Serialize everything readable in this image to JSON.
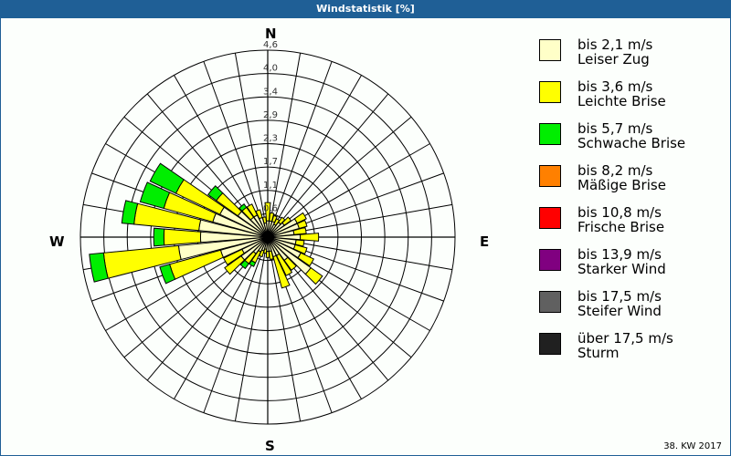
{
  "title": "Windstatistik [%]",
  "footer": "38. KW 2017",
  "compass": {
    "n": "N",
    "e": "E",
    "s": "S",
    "w": "W"
  },
  "chart_data": {
    "type": "windrose",
    "title": "Windstatistik [%]",
    "unit": "%",
    "rmax": 4.6,
    "ring_labels": [
      "0,6",
      "1,1",
      "1,7",
      "2,3",
      "2,9",
      "3,4",
      "4,0",
      "4,6"
    ],
    "ring_values": [
      0.575,
      1.15,
      1.725,
      2.3,
      2.875,
      3.45,
      4.025,
      4.6
    ],
    "directions_deg": [
      0,
      10,
      20,
      30,
      40,
      50,
      60,
      70,
      80,
      90,
      100,
      110,
      120,
      130,
      140,
      150,
      160,
      170,
      180,
      190,
      200,
      210,
      220,
      230,
      240,
      250,
      260,
      270,
      280,
      290,
      300,
      310,
      320,
      330,
      340,
      350
    ],
    "series": [
      {
        "name": "bis 2,1 m/s",
        "color": "#ffffc8",
        "values": [
          0.4,
          0.4,
          0.4,
          0.35,
          0.45,
          0.5,
          0.8,
          0.8,
          0.65,
          0.8,
          0.7,
          0.7,
          0.9,
          1.3,
          0.7,
          0.5,
          0.5,
          0.35,
          0.35,
          0.3,
          0.35,
          0.4,
          0.5,
          0.8,
          0.7,
          1.2,
          2.2,
          1.65,
          1.7,
          1.4,
          1.3,
          0.9,
          0.6,
          0.6,
          0.5,
          0.35
        ]
      },
      {
        "name": "bis 3,6 m/s",
        "color": "#ffff00",
        "values": [
          0.45,
          0.2,
          0.15,
          0.15,
          0.15,
          0.2,
          0.25,
          0.2,
          0.3,
          0.45,
          0.2,
          0.3,
          0.35,
          0.35,
          0.3,
          0.55,
          0.8,
          0.2,
          0.15,
          0.1,
          0.15,
          0.3,
          0.3,
          0.5,
          0.5,
          1.3,
          1.85,
          0.9,
          1.6,
          1.25,
          1.2,
          0.65,
          0.3,
          0.3,
          0.2,
          0.15
        ]
      },
      {
        "name": "bis 5,7 m/s",
        "color": "#00ee00",
        "values": [
          0,
          0,
          0,
          0,
          0,
          0,
          0,
          0,
          0,
          0,
          0,
          0,
          0,
          0,
          0,
          0,
          0,
          0,
          0,
          0,
          0,
          0.1,
          0.15,
          0,
          0,
          0.25,
          0.35,
          0.25,
          0.3,
          0.6,
          0.7,
          0.25,
          0.1,
          0,
          0,
          0
        ]
      },
      {
        "name": "bis 8,2 m/s",
        "color": "#ff8000",
        "values": []
      },
      {
        "name": "bis 10,8 m/s",
        "color": "#ff0000",
        "values": []
      },
      {
        "name": "bis 13,9 m/s",
        "color": "#800080",
        "values": []
      },
      {
        "name": "bis 17,5 m/s",
        "color": "#606060",
        "values": []
      },
      {
        "name": "über 17,5 m/s",
        "color": "#202020",
        "values": []
      }
    ]
  },
  "legend": [
    {
      "speed": "bis 2,1 m/s",
      "name": "Leiser Zug",
      "color": "#ffffc8"
    },
    {
      "speed": "bis 3,6 m/s",
      "name": "Leichte Brise",
      "color": "#ffff00"
    },
    {
      "speed": "bis 5,7 m/s",
      "name": "Schwache Brise",
      "color": "#00ee00"
    },
    {
      "speed": "bis 8,2 m/s",
      "name": "Mäßige Brise",
      "color": "#ff8000"
    },
    {
      "speed": "bis 10,8 m/s",
      "name": "Frische Brise",
      "color": "#ff0000"
    },
    {
      "speed": "bis 13,9 m/s",
      "name": "Starker Wind",
      "color": "#800080"
    },
    {
      "speed": "bis 17,5 m/s",
      "name": "Steifer Wind",
      "color": "#606060"
    },
    {
      "speed": "über 17,5 m/s",
      "name": "Sturm",
      "color": "#202020"
    }
  ]
}
